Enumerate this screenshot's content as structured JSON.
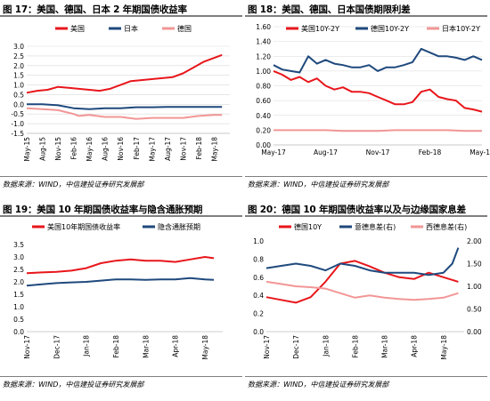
{
  "charts": [
    {
      "title": "图 17：美国、德国、日本 2 年期国债收益率",
      "source": "数据来源：WIND，中信建投证券研究发展部",
      "chart_data": {
        "type": "line",
        "title": "图 17：美国、德国、日本 2 年期国债收益率",
        "ylim": [
          -1.5,
          3.0
        ],
        "yticks": [
          -1.5,
          -1.0,
          -0.5,
          0.0,
          0.5,
          1.0,
          1.5,
          2.0,
          2.5,
          3.0
        ],
        "ytick_labels": [
          "-1.5",
          "-1.0",
          "-0.5",
          "0.0",
          "0.5",
          "1.0",
          "1.5",
          "2.0",
          "2.5",
          "3.0"
        ],
        "xlim": [
          0,
          39
        ],
        "xticks": [
          0,
          3,
          6,
          9,
          12,
          15,
          18,
          21,
          24,
          27,
          30,
          33,
          36,
          39
        ],
        "xtick_labels": [
          "May-15",
          "Aug-15",
          "Nov-15",
          "Feb-16",
          "May-16",
          "Aug-16",
          "Nov-16",
          "Feb-17",
          "May-17",
          "Aug-17",
          "Nov-17",
          "Feb-18",
          "May-18",
          ""
        ],
        "legend_position": "top",
        "grid": true,
        "series": [
          {
            "name": "美国",
            "color": "#e8161b",
            "x": [
              0,
              2,
              4,
              6,
              8,
              10,
              12,
              14,
              16,
              18,
              20,
              22,
              24,
              26,
              28,
              30,
              32,
              34,
              36,
              37.5
            ],
            "y": [
              0.6,
              0.7,
              0.75,
              0.9,
              0.85,
              0.8,
              0.75,
              0.7,
              0.8,
              1.0,
              1.2,
              1.25,
              1.3,
              1.35,
              1.4,
              1.6,
              1.9,
              2.2,
              2.4,
              2.55
            ]
          },
          {
            "name": "日本",
            "color": "#1f497d",
            "x": [
              0,
              3,
              6,
              9,
              12,
              15,
              18,
              21,
              24,
              27,
              30,
              33,
              36,
              37.5
            ],
            "y": [
              0.0,
              0.0,
              -0.05,
              -0.2,
              -0.25,
              -0.2,
              -0.2,
              -0.15,
              -0.15,
              -0.13,
              -0.13,
              -0.13,
              -0.13,
              -0.13
            ]
          },
          {
            "name": "德国",
            "color": "#f29696",
            "x": [
              0,
              3,
              6,
              9,
              10,
              12,
              15,
              18,
              21,
              24,
              27,
              30,
              33,
              36,
              37.5
            ],
            "y": [
              -0.2,
              -0.25,
              -0.3,
              -0.5,
              -0.6,
              -0.55,
              -0.65,
              -0.65,
              -0.75,
              -0.7,
              -0.7,
              -0.7,
              -0.6,
              -0.55,
              -0.55
            ]
          }
        ]
      }
    },
    {
      "title": "图 18：美国、德国、日本国债期限利差",
      "source": "数据来源：WIND，中信建投证券研究发展部",
      "chart_data": {
        "type": "line",
        "title": "图 18：美国、德国、日本国债期限利差",
        "ylim": [
          0.0,
          1.6
        ],
        "yticks": [
          0.0,
          0.2,
          0.4,
          0.6,
          0.8,
          1.0,
          1.2,
          1.4,
          1.6
        ],
        "ytick_labels": [
          "0.00",
          "0.20",
          "0.40",
          "0.60",
          "0.80",
          "1.00",
          "1.20",
          "1.40",
          "1.60"
        ],
        "xlim": [
          0,
          12
        ],
        "xticks": [
          0,
          3,
          6,
          9,
          12
        ],
        "xtick_labels": [
          "May-17",
          "Aug-17",
          "Nov-17",
          "Feb-18",
          "May-18"
        ],
        "legend_position": "top",
        "grid": true,
        "series": [
          {
            "name": "美国10Y-2Y",
            "color": "#e8161b",
            "x": [
              0,
              0.5,
              1,
              1.5,
              2,
              2.5,
              3,
              3.5,
              4,
              4.5,
              5,
              5.5,
              6,
              6.5,
              7,
              7.5,
              8,
              8.5,
              9,
              9.5,
              10,
              10.5,
              11,
              11.5,
              12
            ],
            "y": [
              1.0,
              0.95,
              0.88,
              0.92,
              0.85,
              0.9,
              0.8,
              0.75,
              0.78,
              0.72,
              0.72,
              0.7,
              0.65,
              0.6,
              0.55,
              0.55,
              0.58,
              0.72,
              0.75,
              0.65,
              0.62,
              0.6,
              0.5,
              0.48,
              0.45
            ]
          },
          {
            "name": "德国10Y-2Y",
            "color": "#1f497d",
            "x": [
              0,
              0.5,
              1,
              1.5,
              2,
              2.5,
              3,
              3.5,
              4,
              4.5,
              5,
              5.5,
              6,
              6.5,
              7,
              7.5,
              8,
              8.5,
              9,
              9.5,
              10,
              10.5,
              11,
              11.5,
              12
            ],
            "y": [
              1.08,
              1.02,
              1.0,
              0.98,
              1.2,
              1.1,
              1.15,
              1.1,
              1.08,
              1.05,
              1.05,
              1.08,
              1.0,
              1.05,
              1.05,
              1.08,
              1.12,
              1.3,
              1.25,
              1.2,
              1.2,
              1.18,
              1.15,
              1.2,
              1.15
            ]
          },
          {
            "name": "日本10Y-2Y",
            "color": "#f29696",
            "x": [
              0,
              1,
              2,
              3,
              4,
              5,
              6,
              7,
              8,
              9,
              10,
              11,
              12
            ],
            "y": [
              0.2,
              0.2,
              0.2,
              0.2,
              0.19,
              0.19,
              0.19,
              0.2,
              0.2,
              0.2,
              0.2,
              0.19,
              0.19
            ]
          }
        ]
      }
    },
    {
      "title": "图 19：美国 10 年期国债收益率与隐含通胀预期",
      "source": "数据来源：WIND，中信建投证券研究发展部",
      "chart_data": {
        "type": "line",
        "title": "图 19：美国 10 年期国债收益率与隐含通胀预期",
        "ylim": [
          0.0,
          3.5
        ],
        "yticks": [
          0.0,
          0.5,
          1.0,
          1.5,
          2.0,
          2.5,
          3.0,
          3.5
        ],
        "ytick_labels": [
          "0.0",
          "0.5",
          "1.0",
          "1.5",
          "2.0",
          "2.5",
          "3.0",
          "3.5"
        ],
        "xlim": [
          0,
          6.6
        ],
        "xticks": [
          0,
          1,
          2,
          3,
          4,
          5,
          6
        ],
        "xtick_labels": [
          "Nov-17",
          "Dec-17",
          "Jan-18",
          "Feb-18",
          "Mar-18",
          "Apr-18",
          "May-18"
        ],
        "legend_position": "top",
        "grid": false,
        "series": [
          {
            "name": "美国10年期国债收益率",
            "color": "#e8161b",
            "x": [
              0,
              0.5,
              1,
              1.5,
              2,
              2.5,
              3,
              3.5,
              4,
              4.5,
              5,
              5.5,
              6,
              6.3
            ],
            "y": [
              2.35,
              2.38,
              2.4,
              2.45,
              2.55,
              2.75,
              2.85,
              2.9,
              2.85,
              2.85,
              2.8,
              2.9,
              3.0,
              2.95
            ]
          },
          {
            "name": "隐含通胀预期",
            "color": "#1f497d",
            "x": [
              0,
              0.5,
              1,
              1.5,
              2,
              2.5,
              3,
              3.5,
              4,
              4.5,
              5,
              5.5,
              6,
              6.3
            ],
            "y": [
              1.85,
              1.9,
              1.95,
              1.98,
              2.0,
              2.05,
              2.1,
              2.1,
              2.08,
              2.1,
              2.1,
              2.15,
              2.1,
              2.08
            ]
          }
        ]
      }
    },
    {
      "title": "图 20：德国 10 年期国债收益率以及与边缘国家息差",
      "source": "数据来源：WIND，中信建投证券研究发展部",
      "chart_data": {
        "type": "line",
        "title": "图 20：德国 10 年期国债收益率以及与边缘国家息差",
        "ylim": [
          0.0,
          1.0
        ],
        "yticks": [
          0.0,
          0.2,
          0.4,
          0.6,
          0.8,
          1.0
        ],
        "ytick_labels": [
          "0.0",
          "0.2",
          "0.4",
          "0.6",
          "0.8",
          "1.0"
        ],
        "y2lim": [
          0.0,
          2.0
        ],
        "y2ticks": [
          0.0,
          0.5,
          1.0,
          1.5,
          2.0
        ],
        "y2tick_labels": [
          "0.00",
          "0.50",
          "1.00",
          "1.50",
          "2.00"
        ],
        "xlim": [
          0,
          6.7
        ],
        "xticks": [
          0,
          1,
          2,
          3,
          4,
          5,
          6
        ],
        "xtick_labels": [
          "Nov-17",
          "Dec-17",
          "Jan-18",
          "Feb-18",
          "Mar-18",
          "Apr-18",
          "May-18"
        ],
        "legend_position": "top",
        "grid": false,
        "series": [
          {
            "name": "德国10Y",
            "color": "#e8161b",
            "axis": "left",
            "x": [
              0,
              0.5,
              1,
              1.5,
              2,
              2.5,
              3,
              3.5,
              4,
              4.5,
              5,
              5.5,
              6,
              6.5
            ],
            "y": [
              0.38,
              0.35,
              0.32,
              0.38,
              0.55,
              0.75,
              0.78,
              0.72,
              0.65,
              0.6,
              0.58,
              0.65,
              0.6,
              0.55
            ]
          },
          {
            "name": "意德息差(右)",
            "color": "#1f497d",
            "axis": "right",
            "x": [
              0,
              0.5,
              1,
              1.5,
              2,
              2.5,
              3,
              3.5,
              4,
              4.5,
              5,
              5.5,
              6,
              6.3,
              6.5
            ],
            "y": [
              1.4,
              1.45,
              1.5,
              1.45,
              1.35,
              1.5,
              1.45,
              1.35,
              1.3,
              1.3,
              1.3,
              1.25,
              1.3,
              1.5,
              1.85
            ]
          },
          {
            "name": "西德息差(右)",
            "color": "#f29696",
            "axis": "right",
            "x": [
              0,
              0.5,
              1,
              1.5,
              2,
              2.5,
              3,
              3.5,
              4,
              4.5,
              5,
              5.5,
              6,
              6.5
            ],
            "y": [
              1.1,
              1.05,
              1.0,
              0.98,
              0.95,
              0.85,
              0.75,
              0.8,
              0.75,
              0.72,
              0.7,
              0.72,
              0.75,
              0.85
            ]
          }
        ]
      }
    }
  ]
}
